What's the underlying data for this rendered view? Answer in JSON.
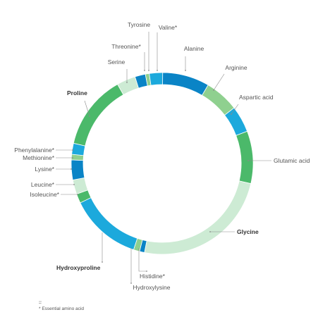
{
  "chart_data": {
    "type": "donut",
    "segments": [
      {
        "name": "Alanine",
        "value": 8.5,
        "color": "#0a84c6"
      },
      {
        "name": "Arginine",
        "value": 6.2,
        "color": "#8fd08f"
      },
      {
        "name": "Aspartic acid",
        "value": 4.8,
        "color": "#1ca9dc"
      },
      {
        "name": "Glutamic acid",
        "value": 9.5,
        "color": "#4bb96a"
      },
      {
        "name": "Glycine",
        "value": 25.0,
        "color": "#cdebd4"
      },
      {
        "name": "Histidine*",
        "value": 0.9,
        "color": "#0a84c6"
      },
      {
        "name": "Hydroxylysine",
        "value": 1.1,
        "color": "#8fd08f"
      },
      {
        "name": "Hydroxyproline",
        "value": 13.0,
        "color": "#1ca9dc"
      },
      {
        "name": "Isoleucine*",
        "value": 1.7,
        "color": "#4bb96a"
      },
      {
        "name": "Leucine*",
        "value": 2.6,
        "color": "#cdebd4"
      },
      {
        "name": "Lysine*",
        "value": 3.6,
        "color": "#0a84c6"
      },
      {
        "name": "Methionine*",
        "value": 1.0,
        "color": "#8fd08f"
      },
      {
        "name": "Phenylalanine*",
        "value": 2.0,
        "color": "#1ca9dc"
      },
      {
        "name": "Proline",
        "value": 13.5,
        "color": "#4bb96a"
      },
      {
        "name": "Serine",
        "value": 3.4,
        "color": "#cdebd4"
      },
      {
        "name": "Threonine*",
        "value": 1.9,
        "color": "#0a84c6"
      },
      {
        "name": "Tyrosine",
        "value": 0.7,
        "color": "#8fd08f"
      },
      {
        "name": "Valine*",
        "value": 2.4,
        "color": "#1ca9dc"
      }
    ],
    "bold_labels": [
      "Glycine",
      "Hydroxyproline",
      "Proline"
    ]
  },
  "footnote": {
    "dash": "–",
    "text": "* Essential amino acid"
  }
}
